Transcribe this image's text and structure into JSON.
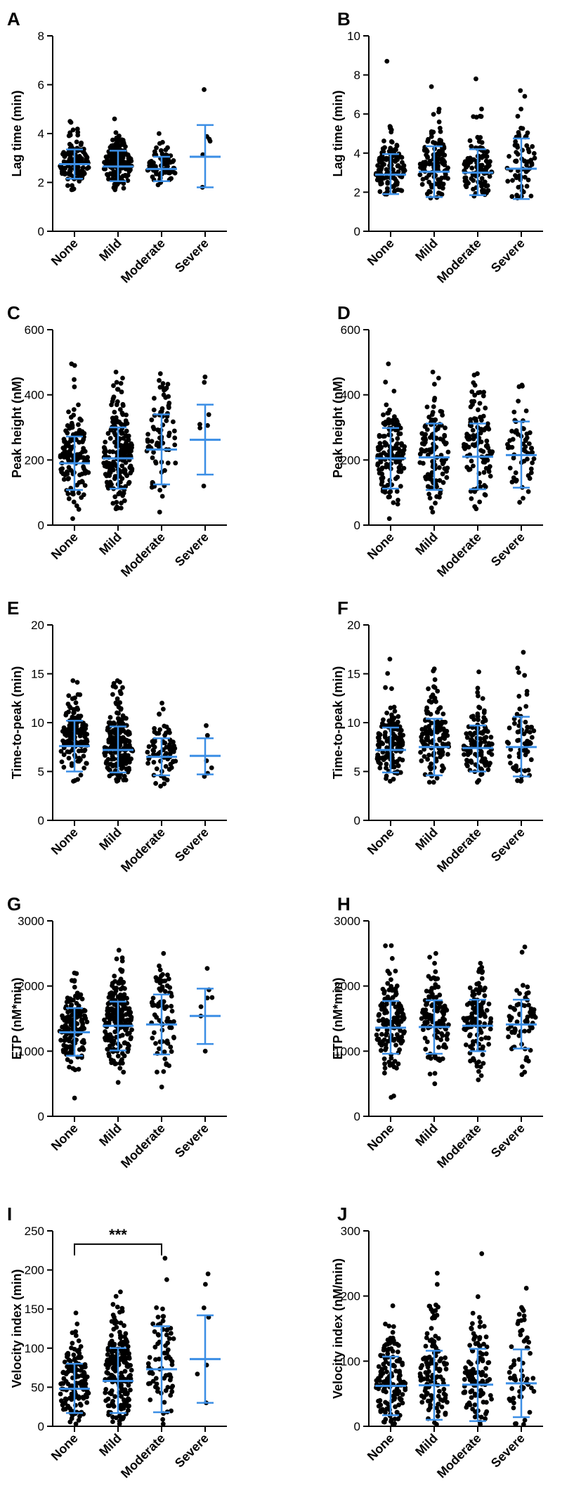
{
  "colors": {
    "points": "#000000",
    "bars": "#3b8ee5",
    "axis": "#000000",
    "background": "#ffffff"
  },
  "chart_data": [
    {
      "panel": "A",
      "type": "scatter",
      "ylabel": "Lag time (min)",
      "ylim": [
        0,
        8
      ],
      "yticks": [
        0,
        2,
        4,
        6,
        8
      ],
      "categories": [
        "None",
        "Mild",
        "Moderate",
        "Severe"
      ],
      "groups": [
        {
          "n": 130,
          "mean": 2.75,
          "sd": 0.55,
          "min": 1.7,
          "max": 4.5,
          "seed": 101,
          "mean_bar": 2.75,
          "err_low": 2.15,
          "err_high": 3.35
        },
        {
          "n": 170,
          "mean": 2.65,
          "sd": 0.55,
          "min": 1.7,
          "max": 4.6,
          "seed": 102,
          "mean_bar": 2.65,
          "err_low": 2.05,
          "err_high": 3.3
        },
        {
          "n": 75,
          "mean": 2.55,
          "sd": 0.45,
          "min": 1.9,
          "max": 4.0,
          "seed": 103,
          "mean_bar": 2.55,
          "err_low": 2.05,
          "err_high": 3.05
        },
        {
          "n": 6,
          "mean": 3.05,
          "sd": 1.3,
          "min": 1.8,
          "max": 5.8,
          "seed": 104,
          "mean_bar": 3.05,
          "err_low": 1.8,
          "err_high": 4.35
        }
      ]
    },
    {
      "panel": "B",
      "type": "scatter",
      "ylabel": "Lag time (min)",
      "ylim": [
        0,
        10
      ],
      "yticks": [
        0,
        2,
        4,
        6,
        8,
        10
      ],
      "categories": [
        "None",
        "Mild",
        "Moderate",
        "Severe"
      ],
      "groups": [
        {
          "n": 130,
          "mean": 2.9,
          "sd": 1.0,
          "min": 1.9,
          "max": 8.7,
          "seed": 201,
          "mean_bar": 2.9,
          "err_low": 1.9,
          "err_high": 3.95
        },
        {
          "n": 120,
          "mean": 3.05,
          "sd": 1.2,
          "min": 1.7,
          "max": 7.4,
          "seed": 202,
          "mean_bar": 3.05,
          "err_low": 1.75,
          "err_high": 4.35
        },
        {
          "n": 110,
          "mean": 3.0,
          "sd": 1.1,
          "min": 1.8,
          "max": 7.8,
          "seed": 203,
          "mean_bar": 3.0,
          "err_low": 1.85,
          "err_high": 4.2
        },
        {
          "n": 65,
          "mean": 3.2,
          "sd": 1.5,
          "min": 1.7,
          "max": 7.2,
          "seed": 204,
          "mean_bar": 3.2,
          "err_low": 1.65,
          "err_high": 4.75
        }
      ]
    },
    {
      "panel": "C",
      "type": "scatter",
      "ylabel": "Peak height (nM)",
      "ylim": [
        0,
        600
      ],
      "yticks": [
        0,
        200,
        400,
        600
      ],
      "categories": [
        "None",
        "Mild",
        "Moderate",
        "Severe"
      ],
      "groups": [
        {
          "n": 140,
          "mean": 190,
          "sd": 85,
          "min": 20,
          "max": 495,
          "seed": 301,
          "mean_bar": 190,
          "err_low": 108,
          "err_high": 272
        },
        {
          "n": 200,
          "mean": 205,
          "sd": 95,
          "min": 50,
          "max": 470,
          "seed": 302,
          "mean_bar": 205,
          "err_low": 112,
          "err_high": 300
        },
        {
          "n": 75,
          "mean": 232,
          "sd": 108,
          "min": 40,
          "max": 465,
          "seed": 303,
          "mean_bar": 232,
          "err_low": 125,
          "err_high": 340
        },
        {
          "n": 7,
          "mean": 262,
          "sd": 105,
          "min": 120,
          "max": 455,
          "seed": 304,
          "mean_bar": 262,
          "err_low": 155,
          "err_high": 370
        }
      ]
    },
    {
      "panel": "D",
      "type": "scatter",
      "ylabel": "Peak height (nM)",
      "ylim": [
        0,
        600
      ],
      "yticks": [
        0,
        200,
        400,
        600
      ],
      "categories": [
        "None",
        "Mild",
        "Moderate",
        "Severe"
      ],
      "groups": [
        {
          "n": 140,
          "mean": 205,
          "sd": 90,
          "min": 20,
          "max": 495,
          "seed": 401,
          "mean_bar": 205,
          "err_low": 112,
          "err_high": 298
        },
        {
          "n": 120,
          "mean": 208,
          "sd": 100,
          "min": 40,
          "max": 470,
          "seed": 402,
          "mean_bar": 208,
          "err_low": 108,
          "err_high": 312
        },
        {
          "n": 110,
          "mean": 210,
          "sd": 100,
          "min": 50,
          "max": 465,
          "seed": 403,
          "mean_bar": 210,
          "err_low": 110,
          "err_high": 312
        },
        {
          "n": 60,
          "mean": 215,
          "sd": 100,
          "min": 70,
          "max": 430,
          "seed": 404,
          "mean_bar": 215,
          "err_low": 115,
          "err_high": 318
        }
      ]
    },
    {
      "panel": "E",
      "type": "scatter",
      "ylabel": "Time-to-peak (min)",
      "ylim": [
        0,
        20
      ],
      "yticks": [
        0,
        5,
        10,
        15,
        20
      ],
      "categories": [
        "None",
        "Mild",
        "Moderate",
        "Severe"
      ],
      "groups": [
        {
          "n": 140,
          "mean": 7.6,
          "sd": 2.5,
          "min": 4.0,
          "max": 14.3,
          "seed": 501,
          "mean_bar": 7.6,
          "err_low": 5.0,
          "err_high": 10.2
        },
        {
          "n": 200,
          "mean": 7.2,
          "sd": 2.4,
          "min": 4.0,
          "max": 14.3,
          "seed": 502,
          "mean_bar": 7.2,
          "err_low": 4.9,
          "err_high": 9.6
        },
        {
          "n": 75,
          "mean": 6.5,
          "sd": 1.9,
          "min": 3.5,
          "max": 12.0,
          "seed": 503,
          "mean_bar": 6.5,
          "err_low": 4.6,
          "err_high": 8.4
        },
        {
          "n": 6,
          "mean": 6.6,
          "sd": 1.9,
          "min": 4.5,
          "max": 9.7,
          "seed": 504,
          "mean_bar": 6.6,
          "err_low": 4.7,
          "err_high": 8.4
        }
      ]
    },
    {
      "panel": "F",
      "type": "scatter",
      "ylabel": "Time-to-peak (min)",
      "ylim": [
        0,
        20
      ],
      "yticks": [
        0,
        5,
        10,
        15,
        20
      ],
      "categories": [
        "None",
        "Mild",
        "Moderate",
        "Severe"
      ],
      "groups": [
        {
          "n": 140,
          "mean": 7.2,
          "sd": 2.3,
          "min": 4.0,
          "max": 16.5,
          "seed": 601,
          "mean_bar": 7.2,
          "err_low": 4.9,
          "err_high": 9.5
        },
        {
          "n": 120,
          "mean": 7.5,
          "sd": 2.9,
          "min": 3.9,
          "max": 15.5,
          "seed": 602,
          "mean_bar": 7.5,
          "err_low": 4.6,
          "err_high": 10.4
        },
        {
          "n": 110,
          "mean": 7.4,
          "sd": 2.3,
          "min": 3.9,
          "max": 15.2,
          "seed": 603,
          "mean_bar": 7.4,
          "err_low": 5.0,
          "err_high": 9.7
        },
        {
          "n": 65,
          "mean": 7.5,
          "sd": 3.0,
          "min": 4.0,
          "max": 17.2,
          "seed": 604,
          "mean_bar": 7.5,
          "err_low": 4.5,
          "err_high": 10.6
        }
      ]
    },
    {
      "panel": "G",
      "type": "scatter",
      "ylabel": "ETP (nM*min)",
      "ylim": [
        0,
        3000
      ],
      "yticks": [
        0,
        1000,
        2000,
        3000
      ],
      "categories": [
        "None",
        "Mild",
        "Moderate",
        "Severe"
      ],
      "groups": [
        {
          "n": 140,
          "mean": 1290,
          "sd": 360,
          "min": 280,
          "max": 2200,
          "seed": 701,
          "mean_bar": 1290,
          "err_low": 930,
          "err_high": 1660
        },
        {
          "n": 200,
          "mean": 1390,
          "sd": 380,
          "min": 520,
          "max": 2550,
          "seed": 702,
          "mean_bar": 1390,
          "err_low": 1010,
          "err_high": 1760
        },
        {
          "n": 75,
          "mean": 1410,
          "sd": 460,
          "min": 450,
          "max": 2500,
          "seed": 703,
          "mean_bar": 1410,
          "err_low": 950,
          "err_high": 1870
        },
        {
          "n": 7,
          "mean": 1540,
          "sd": 420,
          "min": 1000,
          "max": 2270,
          "seed": 704,
          "mean_bar": 1540,
          "err_low": 1110,
          "err_high": 1960
        }
      ]
    },
    {
      "panel": "H",
      "type": "scatter",
      "ylabel": "ETP (nM*min)",
      "ylim": [
        0,
        3000
      ],
      "yticks": [
        0,
        1000,
        2000,
        3000
      ],
      "categories": [
        "None",
        "Mild",
        "Moderate",
        "Severe"
      ],
      "groups": [
        {
          "n": 140,
          "mean": 1360,
          "sd": 400,
          "min": 290,
          "max": 2620,
          "seed": 801,
          "mean_bar": 1360,
          "err_low": 960,
          "err_high": 1770
        },
        {
          "n": 120,
          "mean": 1370,
          "sd": 410,
          "min": 500,
          "max": 2500,
          "seed": 802,
          "mean_bar": 1370,
          "err_low": 960,
          "err_high": 1780
        },
        {
          "n": 110,
          "mean": 1390,
          "sd": 390,
          "min": 560,
          "max": 2350,
          "seed": 803,
          "mean_bar": 1390,
          "err_low": 1000,
          "err_high": 1790
        },
        {
          "n": 65,
          "mean": 1410,
          "sd": 370,
          "min": 640,
          "max": 2600,
          "seed": 804,
          "mean_bar": 1410,
          "err_low": 1040,
          "err_high": 1790
        }
      ]
    },
    {
      "panel": "I",
      "type": "scatter",
      "ylabel": "Velocity index (min)",
      "ylim": [
        0,
        250
      ],
      "yticks": [
        0,
        50,
        100,
        150,
        200,
        250
      ],
      "categories": [
        "None",
        "Mild",
        "Moderate",
        "Severe"
      ],
      "annotation": {
        "text": "***",
        "from": 0,
        "to": 2,
        "y": 233
      },
      "groups": [
        {
          "n": 140,
          "mean": 48,
          "sd": 32,
          "min": 3,
          "max": 145,
          "seed": 901,
          "mean_bar": 48,
          "err_low": 17,
          "err_high": 80
        },
        {
          "n": 200,
          "mean": 58,
          "sd": 42,
          "min": 3,
          "max": 172,
          "seed": 902,
          "mean_bar": 58,
          "err_low": 17,
          "err_high": 100
        },
        {
          "n": 75,
          "mean": 73,
          "sd": 56,
          "min": 3,
          "max": 215,
          "seed": 903,
          "mean_bar": 73,
          "err_low": 18,
          "err_high": 128
        },
        {
          "n": 7,
          "mean": 86,
          "sd": 56,
          "min": 30,
          "max": 195,
          "seed": 904,
          "mean_bar": 86,
          "err_low": 30,
          "err_high": 142
        }
      ]
    },
    {
      "panel": "J",
      "type": "scatter",
      "ylabel": "Velocity index (nM/min)",
      "ylim": [
        0,
        300
      ],
      "yticks": [
        0,
        100,
        200,
        300
      ],
      "categories": [
        "None",
        "Mild",
        "Moderate",
        "Severe"
      ],
      "groups": [
        {
          "n": 140,
          "mean": 62,
          "sd": 45,
          "min": 3,
          "max": 185,
          "seed": 1001,
          "mean_bar": 62,
          "err_low": 17,
          "err_high": 107
        },
        {
          "n": 120,
          "mean": 63,
          "sd": 52,
          "min": 3,
          "max": 235,
          "seed": 1002,
          "mean_bar": 63,
          "err_low": 10,
          "err_high": 116
        },
        {
          "n": 110,
          "mean": 64,
          "sd": 55,
          "min": 3,
          "max": 265,
          "seed": 1003,
          "mean_bar": 64,
          "err_low": 8,
          "err_high": 119
        },
        {
          "n": 60,
          "mean": 66,
          "sd": 52,
          "min": 3,
          "max": 212,
          "seed": 1004,
          "mean_bar": 66,
          "err_low": 14,
          "err_high": 118
        }
      ]
    }
  ]
}
